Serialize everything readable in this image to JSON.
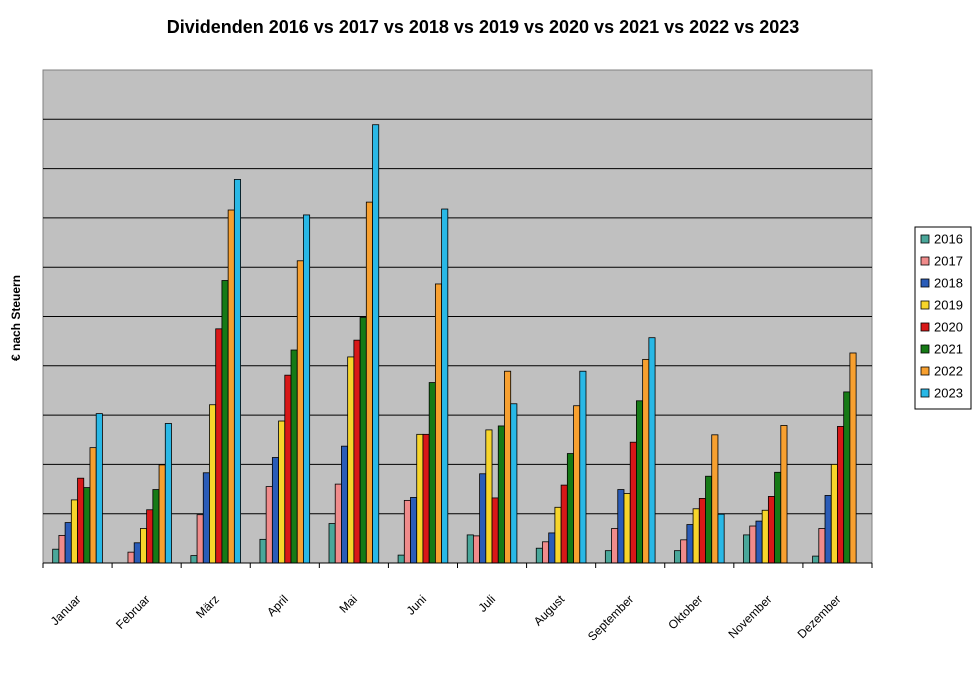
{
  "chart_data": {
    "type": "bar",
    "title": "Dividenden 2016 vs 2017 vs 2018 vs 2019 vs 2020 vs 2021 vs 2022 vs 2023",
    "xlabel": "",
    "ylabel": "€ nach Steuern",
    "ylim": [
      0,
      10
    ],
    "grid": true,
    "legend_position": "right",
    "background_color": "#c0c0c0",
    "categories": [
      "Januar",
      "Februar",
      "März",
      "April",
      "Mai",
      "Juni",
      "Juli",
      "August",
      "September",
      "Oktober",
      "November",
      "Dezember"
    ],
    "series": [
      {
        "name": "2016",
        "color": "#4aa79a",
        "values": [
          0.28,
          0,
          0.15,
          0.48,
          0.8,
          0.16,
          0.57,
          0.3,
          0.25,
          0.25,
          0.57,
          0.14
        ]
      },
      {
        "name": "2017",
        "color": "#f08b8b",
        "values": [
          0.56,
          0.22,
          0.98,
          1.55,
          1.6,
          1.27,
          0.55,
          0.43,
          0.7,
          0.47,
          0.75,
          0.7
        ]
      },
      {
        "name": "2018",
        "color": "#2a5cb8",
        "values": [
          0.82,
          0.41,
          1.83,
          2.14,
          2.37,
          1.33,
          1.81,
          0.61,
          1.49,
          0.78,
          0.85,
          1.37
        ]
      },
      {
        "name": "2019",
        "color": "#f7d52b",
        "values": [
          1.28,
          0.7,
          3.21,
          2.88,
          4.18,
          2.61,
          2.7,
          1.13,
          1.41,
          1.1,
          1.07,
          2.0
        ]
      },
      {
        "name": "2020",
        "color": "#d81818",
        "values": [
          1.72,
          1.08,
          4.75,
          3.81,
          4.52,
          2.61,
          1.32,
          1.58,
          2.45,
          1.31,
          1.35,
          2.77
        ]
      },
      {
        "name": "2021",
        "color": "#167a16",
        "values": [
          1.53,
          1.49,
          5.73,
          4.32,
          4.98,
          3.66,
          2.78,
          2.22,
          3.29,
          1.76,
          1.84,
          3.47
        ]
      },
      {
        "name": "2022",
        "color": "#f7a030",
        "values": [
          2.34,
          1.99,
          7.16,
          6.13,
          7.32,
          5.66,
          3.89,
          3.19,
          4.13,
          2.6,
          2.79,
          4.26
        ]
      },
      {
        "name": "2023",
        "color": "#29b8e6",
        "values": [
          3.03,
          2.83,
          7.78,
          7.06,
          8.89,
          7.18,
          3.23,
          3.89,
          4.57,
          0.99,
          0,
          0
        ]
      }
    ]
  }
}
